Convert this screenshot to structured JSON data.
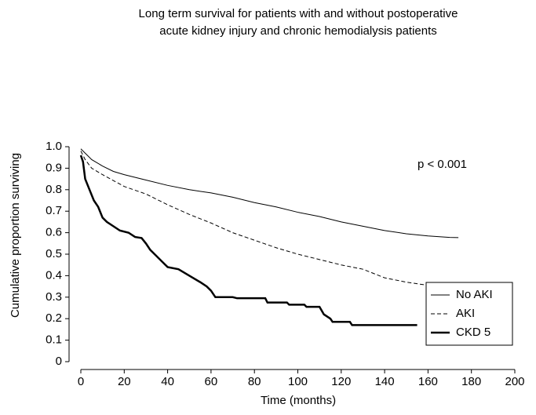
{
  "chart_data": {
    "type": "line",
    "title": [
      "Long term survival for patients with and without postoperative",
      "acute kidney injury and chronic hemodialysis patients"
    ],
    "xlabel": "Time (months)",
    "ylabel": "Cumulative proportion surviving",
    "xlim": [
      0,
      200
    ],
    "xticks": [
      0,
      20,
      40,
      60,
      80,
      100,
      120,
      140,
      160,
      180,
      200
    ],
    "ylim": [
      0,
      1
    ],
    "yticks": [
      0,
      0.1,
      0.2,
      0.3,
      0.4,
      0.5,
      0.6,
      0.7,
      0.8,
      0.9,
      {
        "value": 1,
        "label": "1.0"
      }
    ],
    "grid": false,
    "legend": "lower right",
    "annotations": [
      {
        "text": "p < 0.001"
      }
    ],
    "series": [
      {
        "name": "No AKI",
        "color": "#000000",
        "style": "solid",
        "width": 1,
        "x": [
          0,
          2,
          5,
          10,
          15,
          20,
          30,
          40,
          50,
          60,
          70,
          80,
          90,
          100,
          110,
          120,
          130,
          140,
          150,
          160,
          170,
          174
        ],
        "values": [
          0.99,
          0.97,
          0.94,
          0.91,
          0.885,
          0.87,
          0.845,
          0.82,
          0.8,
          0.785,
          0.765,
          0.74,
          0.72,
          0.695,
          0.675,
          0.65,
          0.63,
          0.61,
          0.595,
          0.585,
          0.578,
          0.577
        ]
      },
      {
        "name": "AKI",
        "color": "#000000",
        "style": "dashed",
        "width": 1,
        "x": [
          0,
          2,
          5,
          10,
          20,
          30,
          40,
          50,
          60,
          70,
          80,
          90,
          100,
          110,
          120,
          130,
          140,
          150,
          160,
          168,
          170,
          173
        ],
        "values": [
          0.98,
          0.94,
          0.9,
          0.87,
          0.815,
          0.78,
          0.73,
          0.685,
          0.645,
          0.6,
          0.565,
          0.53,
          0.5,
          0.475,
          0.45,
          0.43,
          0.39,
          0.37,
          0.355,
          0.355,
          0.34,
          0.34
        ]
      },
      {
        "name": "CKD 5",
        "color": "#000000",
        "style": "solid",
        "width": 2.5,
        "x": [
          0,
          1,
          2,
          4,
          6,
          8,
          10,
          12,
          15,
          18,
          22,
          25,
          28,
          30,
          32,
          35,
          38,
          40,
          45,
          50,
          55,
          58,
          60,
          62,
          70,
          72,
          85,
          86,
          95,
          96,
          103,
          104,
          110,
          112,
          115,
          116,
          124,
          125,
          155
        ],
        "values": [
          0.96,
          0.93,
          0.85,
          0.8,
          0.75,
          0.72,
          0.67,
          0.65,
          0.63,
          0.61,
          0.6,
          0.58,
          0.575,
          0.55,
          0.52,
          0.49,
          0.46,
          0.44,
          0.43,
          0.4,
          0.37,
          0.35,
          0.33,
          0.3,
          0.3,
          0.295,
          0.295,
          0.275,
          0.275,
          0.265,
          0.265,
          0.255,
          0.255,
          0.22,
          0.2,
          0.185,
          0.185,
          0.17,
          0.17
        ]
      }
    ]
  }
}
